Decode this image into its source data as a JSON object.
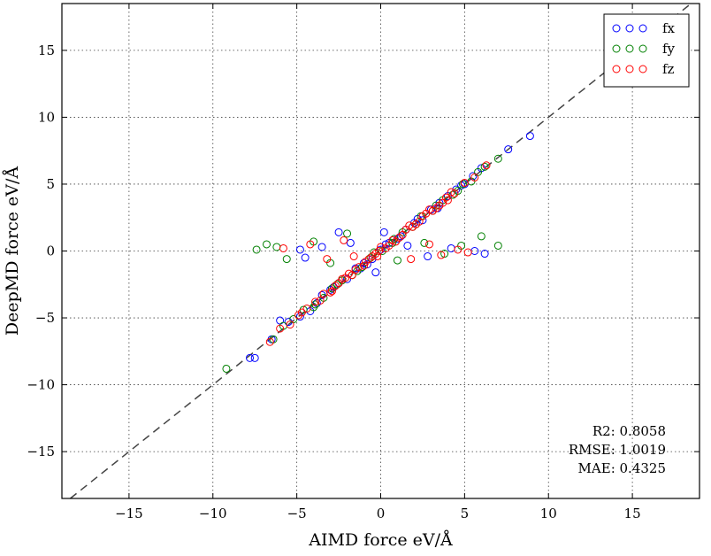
{
  "chart_data": {
    "type": "scatter",
    "xlabel": "AIMD force eV/Å",
    "ylabel": "DeepMD force eV/Å",
    "xlim": [
      -19,
      19
    ],
    "ylim": [
      -18.5,
      18.5
    ],
    "xticks": [
      -15,
      -10,
      -5,
      0,
      5,
      10,
      15
    ],
    "yticks": [
      -15,
      -10,
      -5,
      0,
      5,
      10,
      15
    ],
    "tick_labels": {
      "x": [
        "−15",
        "−10",
        "−5",
        "0",
        "5",
        "10",
        "15"
      ],
      "y": [
        "−15",
        "−10",
        "−5",
        "0",
        "5",
        "10",
        "15"
      ]
    },
    "grid": true,
    "reference_line": "y = x (dashed)",
    "legend": {
      "placement": "top-right",
      "entries": [
        "fx",
        "fy",
        "fz"
      ]
    },
    "stats": [
      "R2: 0.8058",
      "RMSE: 1.0019",
      "MAE: 0.4325"
    ],
    "series": [
      {
        "name": "fx",
        "color": "#0000ff",
        "points": [
          [
            8.9,
            8.6
          ],
          [
            7.6,
            7.6
          ],
          [
            -7.8,
            -8.0
          ],
          [
            -7.5,
            -8.0
          ],
          [
            -6.5,
            -6.6
          ],
          [
            -6.0,
            -5.2
          ],
          [
            -5.5,
            -5.3
          ],
          [
            -4.8,
            -4.9
          ],
          [
            -4.2,
            -4.5
          ],
          [
            -3.5,
            -3.3
          ],
          [
            -3.0,
            -2.9
          ],
          [
            -2.5,
            -2.4
          ],
          [
            -2.0,
            -2.1
          ],
          [
            -1.5,
            -1.3
          ],
          [
            -1.0,
            -0.9
          ],
          [
            -0.5,
            -0.6
          ],
          [
            0.0,
            0.1
          ],
          [
            0.5,
            0.6
          ],
          [
            1.0,
            0.9
          ],
          [
            1.5,
            1.6
          ],
          [
            2.0,
            2.1
          ],
          [
            2.5,
            2.3
          ],
          [
            3.0,
            3.1
          ],
          [
            3.5,
            3.6
          ],
          [
            4.0,
            4.1
          ],
          [
            4.5,
            4.6
          ],
          [
            5.0,
            5.0
          ],
          [
            5.5,
            5.6
          ],
          [
            6.0,
            6.2
          ],
          [
            -4.8,
            0.1
          ],
          [
            -4.5,
            -0.5
          ],
          [
            -3.5,
            0.3
          ],
          [
            -2.5,
            1.4
          ],
          [
            -1.8,
            0.6
          ],
          [
            1.6,
            0.4
          ],
          [
            2.8,
            -0.4
          ],
          [
            4.2,
            0.2
          ],
          [
            5.6,
            0.0
          ],
          [
            6.2,
            -0.2
          ],
          [
            -0.8,
            -1.0
          ],
          [
            0.3,
            0.5
          ],
          [
            1.2,
            1.1
          ],
          [
            2.2,
            2.4
          ],
          [
            3.4,
            3.2
          ],
          [
            -1.2,
            -1.3
          ],
          [
            -2.8,
            -2.7
          ],
          [
            -3.8,
            -3.9
          ],
          [
            4.8,
            4.9
          ],
          [
            0.2,
            1.4
          ],
          [
            -0.3,
            -1.6
          ]
        ]
      },
      {
        "name": "fy",
        "color": "#008000",
        "points": [
          [
            -9.2,
            -8.8
          ],
          [
            -6.4,
            -6.6
          ],
          [
            -5.8,
            -5.6
          ],
          [
            -5.2,
            -5.1
          ],
          [
            -4.6,
            -4.4
          ],
          [
            -4.0,
            -4.2
          ],
          [
            -3.4,
            -3.5
          ],
          [
            -2.9,
            -2.8
          ],
          [
            -2.3,
            -2.2
          ],
          [
            -1.7,
            -1.8
          ],
          [
            -1.1,
            -1.2
          ],
          [
            -0.6,
            -0.5
          ],
          [
            0.1,
            0.0
          ],
          [
            0.7,
            0.6
          ],
          [
            1.3,
            1.4
          ],
          [
            1.9,
            1.8
          ],
          [
            2.4,
            2.6
          ],
          [
            3.1,
            3.0
          ],
          [
            3.7,
            3.8
          ],
          [
            4.3,
            4.2
          ],
          [
            4.9,
            5.0
          ],
          [
            5.4,
            5.2
          ],
          [
            6.2,
            6.3
          ],
          [
            7.0,
            6.9
          ],
          [
            -7.4,
            0.1
          ],
          [
            -6.8,
            0.5
          ],
          [
            -6.2,
            0.3
          ],
          [
            -5.6,
            -0.6
          ],
          [
            -4.0,
            0.7
          ],
          [
            -3.0,
            -0.9
          ],
          [
            -2.0,
            1.3
          ],
          [
            1.0,
            -0.7
          ],
          [
            2.6,
            0.6
          ],
          [
            3.8,
            -0.2
          ],
          [
            4.8,
            0.4
          ],
          [
            6.0,
            1.1
          ],
          [
            7.0,
            0.4
          ],
          [
            -0.4,
            -0.1
          ],
          [
            0.8,
            0.9
          ],
          [
            2.1,
            2.0
          ],
          [
            -1.4,
            -1.5
          ],
          [
            -2.6,
            -2.5
          ],
          [
            3.3,
            3.4
          ],
          [
            4.6,
            4.5
          ],
          [
            5.8,
            5.9
          ],
          [
            -3.9,
            -4.0
          ]
        ]
      },
      {
        "name": "fz",
        "color": "#ff0000",
        "points": [
          [
            -6.6,
            -6.8
          ],
          [
            -6.0,
            -5.8
          ],
          [
            -5.4,
            -5.5
          ],
          [
            -4.9,
            -4.8
          ],
          [
            -4.4,
            -4.3
          ],
          [
            -3.9,
            -3.8
          ],
          [
            -3.4,
            -3.2
          ],
          [
            -2.9,
            -3.0
          ],
          [
            -2.5,
            -2.4
          ],
          [
            -2.1,
            -2.0
          ],
          [
            -1.7,
            -1.8
          ],
          [
            -1.3,
            -1.2
          ],
          [
            -0.9,
            -0.8
          ],
          [
            -0.5,
            -0.4
          ],
          [
            -0.1,
            0.0
          ],
          [
            0.3,
            0.2
          ],
          [
            0.7,
            0.8
          ],
          [
            1.1,
            1.0
          ],
          [
            1.5,
            1.6
          ],
          [
            1.9,
            1.8
          ],
          [
            2.3,
            2.2
          ],
          [
            2.7,
            2.8
          ],
          [
            3.1,
            3.0
          ],
          [
            3.5,
            3.4
          ],
          [
            3.9,
            4.0
          ],
          [
            4.4,
            4.3
          ],
          [
            5.0,
            5.1
          ],
          [
            5.6,
            5.5
          ],
          [
            6.3,
            6.4
          ],
          [
            -5.8,
            0.2
          ],
          [
            -4.2,
            0.5
          ],
          [
            -3.2,
            -0.6
          ],
          [
            -2.2,
            0.8
          ],
          [
            -1.6,
            -0.4
          ],
          [
            1.8,
            -0.6
          ],
          [
            2.9,
            0.5
          ],
          [
            3.6,
            -0.3
          ],
          [
            4.6,
            0.1
          ],
          [
            5.2,
            -0.1
          ],
          [
            -2.7,
            -2.6
          ],
          [
            -1.9,
            -1.7
          ],
          [
            -1.0,
            -1.1
          ],
          [
            -0.3,
            -0.2
          ],
          [
            0.5,
            0.4
          ],
          [
            1.3,
            1.2
          ],
          [
            2.1,
            2.0
          ],
          [
            2.9,
            3.1
          ],
          [
            3.7,
            3.6
          ],
          [
            4.2,
            4.4
          ],
          [
            -3.6,
            -3.7
          ],
          [
            -4.7,
            -4.6
          ],
          [
            0.9,
            0.7
          ],
          [
            1.7,
            1.9
          ],
          [
            -0.7,
            -0.6
          ],
          [
            0.0,
            0.3
          ],
          [
            -1.5,
            -1.4
          ],
          [
            2.5,
            2.6
          ],
          [
            3.3,
            3.2
          ],
          [
            -2.3,
            -2.1
          ],
          [
            -3.0,
            -3.1
          ],
          [
            4.0,
            3.8
          ],
          [
            -0.2,
            -0.4
          ]
        ]
      }
    ]
  }
}
